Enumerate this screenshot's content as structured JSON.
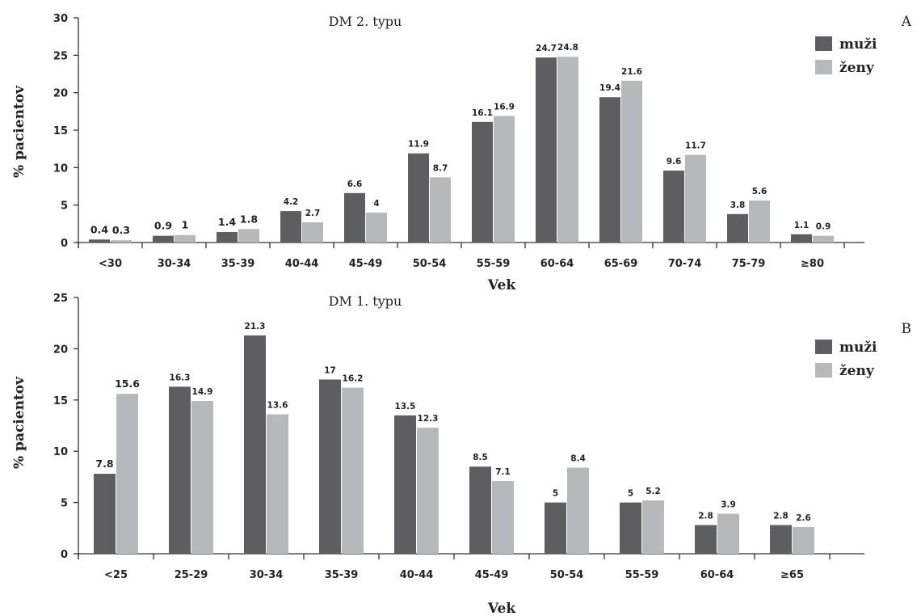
{
  "chart_data": [
    {
      "type": "bar",
      "title": "DM 2. typu",
      "panel": "A",
      "xlabel": "Vek",
      "ylabel": "% pacientov",
      "ylim": [
        0,
        30
      ],
      "yticks": [
        "0",
        "5",
        "10",
        "15",
        "20",
        "25",
        "30"
      ],
      "legend_position": "top-right",
      "categories": [
        "<30",
        "30-34",
        "35-39",
        "40-44",
        "45-49",
        "50-54",
        "55-59",
        "60-64",
        "65-69",
        "70-74",
        "75-79",
        "≥80"
      ],
      "series": [
        {
          "name": "muži",
          "color": "#5e5e60",
          "values": [
            0.4,
            0.9,
            1.4,
            4.2,
            6.6,
            11.9,
            16.1,
            24.7,
            19.4,
            9.6,
            3.8,
            1.1
          ],
          "labels": [
            "0.4",
            "0.9",
            "1.4",
            "4.2",
            "6.6",
            "11.9",
            "16.1",
            "24.7",
            "19.4",
            "9.6",
            "3.8",
            "1.1"
          ]
        },
        {
          "name": "ženy",
          "color": "#b7b8bb",
          "values": [
            0.3,
            1,
            1.8,
            2.7,
            4,
            8.7,
            16.9,
            24.8,
            21.6,
            11.7,
            5.6,
            0.9
          ],
          "labels": [
            "0.3",
            "1",
            "1.8",
            "2.7",
            "4",
            "8.7",
            "16.9",
            "24.8",
            "21.6",
            "11.7",
            "5.6",
            "0.9"
          ]
        }
      ]
    },
    {
      "type": "bar",
      "title": "DM 1. typu",
      "panel": "B",
      "xlabel": "Vek",
      "ylabel": "% pacientov",
      "ylim": [
        0,
        25
      ],
      "yticks": [
        "0",
        "5",
        "10",
        "15",
        "20",
        "25"
      ],
      "legend_position": "top-right",
      "categories": [
        "<25",
        "25-29",
        "30-34",
        "35-39",
        "40-44",
        "45-49",
        "50-54",
        "55-59",
        "60-64",
        "≥65"
      ],
      "series": [
        {
          "name": "muži",
          "color": "#5e5e60",
          "values": [
            7.8,
            16.3,
            21.3,
            17,
            13.5,
            8.5,
            5,
            5,
            2.8,
            2.8
          ],
          "labels": [
            "7.8",
            "16.3",
            "21.3",
            "17",
            "13.5",
            "8.5",
            "5",
            "5",
            "2.8",
            "2.8"
          ]
        },
        {
          "name": "ženy",
          "color": "#b7b8bb",
          "values": [
            15.6,
            14.9,
            13.6,
            16.2,
            12.3,
            7.1,
            8.4,
            5.2,
            3.9,
            2.6
          ],
          "labels": [
            "15.6",
            "14.9",
            "13.6",
            "16.2",
            "12.3",
            "7.1",
            "8.4",
            "5.2",
            "3.9",
            "2.6"
          ]
        }
      ]
    }
  ]
}
